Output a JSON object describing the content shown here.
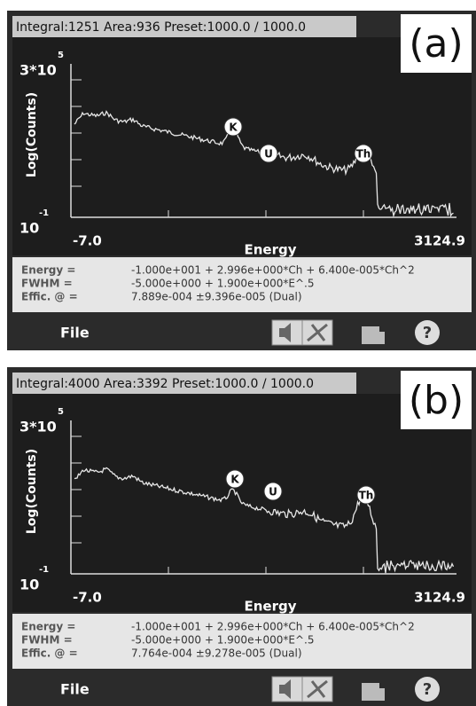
{
  "panels": [
    {
      "status": "Integral:1251 Area:936 Preset:1000.0 / 1000.0",
      "label": "(a)",
      "plot": {
        "y_top": "3*10",
        "y_top_exp": "5",
        "y_bottom": "10",
        "y_bottom_exp": "-1",
        "y_label": "Log(Counts)",
        "x_min": "-7.0",
        "x_label": "Energy",
        "x_max": "3124.9",
        "peaks": [
          "K",
          "U",
          "Th"
        ]
      },
      "calibration": [
        {
          "label": "Energy =",
          "value": "-1.000e+001 + 2.996e+000*Ch + 6.400e-005*Ch^2"
        },
        {
          "label": "FWHM =",
          "value": "-5.000e+000 + 1.900e+000*E^.5"
        },
        {
          "label": "Effic. @ =",
          "value": "7.889e-004 ±9.396e-005  (Dual)"
        }
      ],
      "toolbar": {
        "file": "File",
        "help": "?"
      }
    },
    {
      "status": "Integral:4000 Area:3392 Preset:1000.0 / 1000.0",
      "label": "(b)",
      "plot": {
        "y_top": "3*10",
        "y_top_exp": "5",
        "y_bottom": "10",
        "y_bottom_exp": "-1",
        "y_label": "Log(Counts)",
        "x_min": "-7.0",
        "x_label": "Energy",
        "x_max": "3124.9",
        "peaks": [
          "K",
          "U",
          "Th"
        ]
      },
      "calibration": [
        {
          "label": "Energy =",
          "value": "-1.000e+001 + 2.996e+000*Ch + 6.400e-005*Ch^2"
        },
        {
          "label": "FWHM =",
          "value": "-5.000e+000 + 1.900e+000*E^.5"
        },
        {
          "label": "Effic. @ =",
          "value": "7.764e-004 ±9.278e-005  (Dual)"
        }
      ],
      "toolbar": {
        "file": "File",
        "help": "?"
      }
    }
  ]
}
